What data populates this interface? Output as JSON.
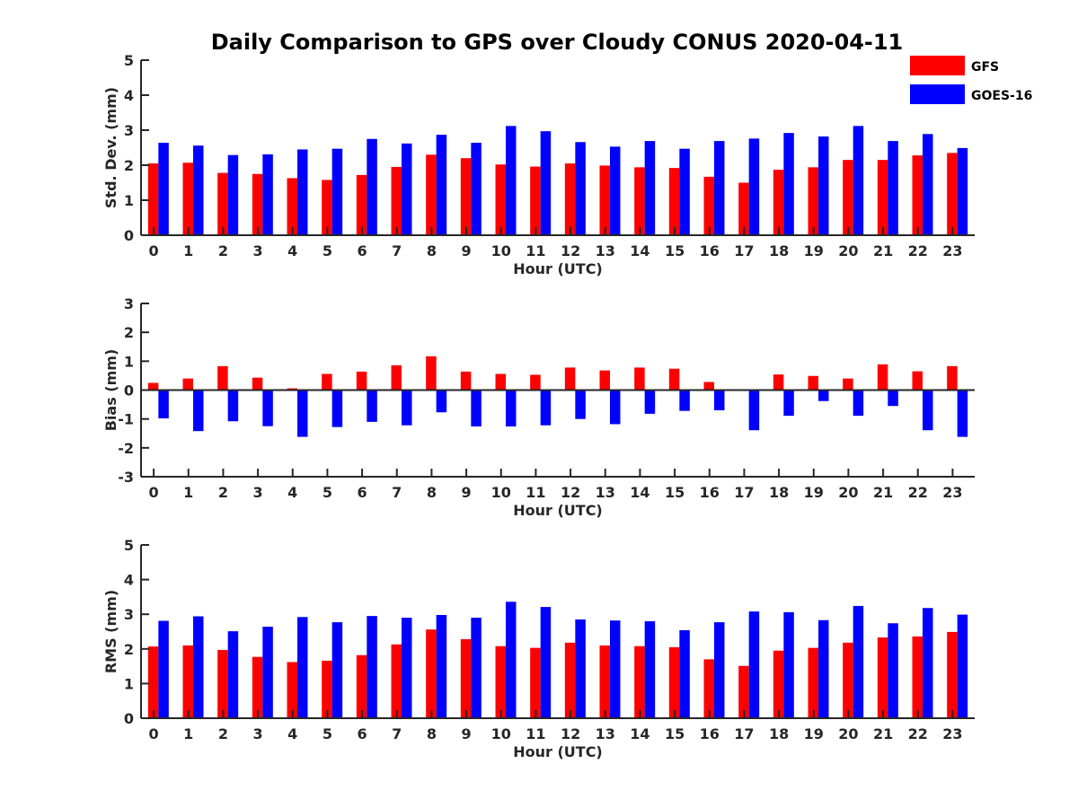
{
  "title": "Daily Comparison to GPS over Cloudy CONUS 2020-04-11",
  "legend": {
    "placement": "top-right",
    "entries": [
      {
        "label": "GFS",
        "color": "#ff0000"
      },
      {
        "label": "GOES-16",
        "color": "#0000ff"
      }
    ]
  },
  "chart_data": [
    {
      "type": "bar",
      "xlabel": "Hour (UTC)",
      "ylabel": "Std. Dev. (mm)",
      "ylim": [
        0,
        5
      ],
      "yticks": [
        0,
        1,
        2,
        3,
        4,
        5
      ],
      "categories": [
        "0",
        "1",
        "2",
        "3",
        "4",
        "5",
        "6",
        "7",
        "8",
        "9",
        "10",
        "11",
        "12",
        "13",
        "14",
        "15",
        "16",
        "17",
        "18",
        "19",
        "20",
        "21",
        "22",
        "23"
      ],
      "series": [
        {
          "name": "GFS",
          "color": "#ff0000",
          "values": [
            2.05,
            2.07,
            1.78,
            1.75,
            1.63,
            1.58,
            1.72,
            1.95,
            2.3,
            2.2,
            2.02,
            1.96,
            2.05,
            1.99,
            1.94,
            1.92,
            1.67,
            1.5,
            1.87,
            1.94,
            2.15,
            2.15,
            2.28,
            2.35
          ]
        },
        {
          "name": "GOES-16",
          "color": "#0000ff",
          "values": [
            2.64,
            2.56,
            2.29,
            2.31,
            2.45,
            2.47,
            2.75,
            2.62,
            2.87,
            2.64,
            3.12,
            2.97,
            2.66,
            2.53,
            2.69,
            2.47,
            2.69,
            2.76,
            2.92,
            2.82,
            3.12,
            2.69,
            2.89,
            2.49
          ]
        }
      ]
    },
    {
      "type": "bar",
      "xlabel": "Hour (UTC)",
      "ylabel": "Bias (mm)",
      "ylim": [
        -3,
        3
      ],
      "yticks": [
        -3,
        -2,
        -1,
        0,
        1,
        2,
        3
      ],
      "categories": [
        "0",
        "1",
        "2",
        "3",
        "4",
        "5",
        "6",
        "7",
        "8",
        "9",
        "10",
        "11",
        "12",
        "13",
        "14",
        "15",
        "16",
        "17",
        "18",
        "19",
        "20",
        "21",
        "22",
        "23"
      ],
      "series": [
        {
          "name": "GFS",
          "color": "#ff0000",
          "values": [
            0.25,
            0.4,
            0.83,
            0.43,
            0.06,
            0.56,
            0.64,
            0.86,
            1.17,
            0.64,
            0.56,
            0.53,
            0.78,
            0.68,
            0.78,
            0.74,
            0.28,
            0.0,
            0.54,
            0.49,
            0.4,
            0.89,
            0.65,
            0.83
          ]
        },
        {
          "name": "GOES-16",
          "color": "#0000ff",
          "values": [
            -0.98,
            -1.42,
            -1.08,
            -1.25,
            -1.62,
            -1.28,
            -1.1,
            -1.22,
            -0.77,
            -1.26,
            -1.26,
            -1.22,
            -1.0,
            -1.18,
            -0.82,
            -0.72,
            -0.7,
            -1.39,
            -0.89,
            -0.38,
            -0.89,
            -0.55,
            -1.39,
            -1.62
          ]
        }
      ]
    },
    {
      "type": "bar",
      "xlabel": "Hour (UTC)",
      "ylabel": "RMS (mm)",
      "ylim": [
        0,
        5
      ],
      "yticks": [
        0,
        1,
        2,
        3,
        4,
        5
      ],
      "categories": [
        "0",
        "1",
        "2",
        "3",
        "4",
        "5",
        "6",
        "7",
        "8",
        "9",
        "10",
        "11",
        "12",
        "13",
        "14",
        "15",
        "16",
        "17",
        "18",
        "19",
        "20",
        "21",
        "22",
        "23"
      ],
      "series": [
        {
          "name": "GFS",
          "color": "#ff0000",
          "values": [
            2.07,
            2.1,
            1.97,
            1.77,
            1.62,
            1.66,
            1.82,
            2.13,
            2.56,
            2.28,
            2.08,
            2.03,
            2.18,
            2.1,
            2.08,
            2.05,
            1.7,
            1.51,
            1.95,
            2.03,
            2.18,
            2.33,
            2.36,
            2.49
          ]
        },
        {
          "name": "GOES-16",
          "color": "#0000ff",
          "values": [
            2.81,
            2.94,
            2.51,
            2.64,
            2.92,
            2.77,
            2.95,
            2.9,
            2.98,
            2.9,
            3.36,
            3.21,
            2.85,
            2.82,
            2.8,
            2.54,
            2.77,
            3.08,
            3.06,
            2.83,
            3.24,
            2.74,
            3.18,
            2.99
          ]
        }
      ]
    }
  ]
}
